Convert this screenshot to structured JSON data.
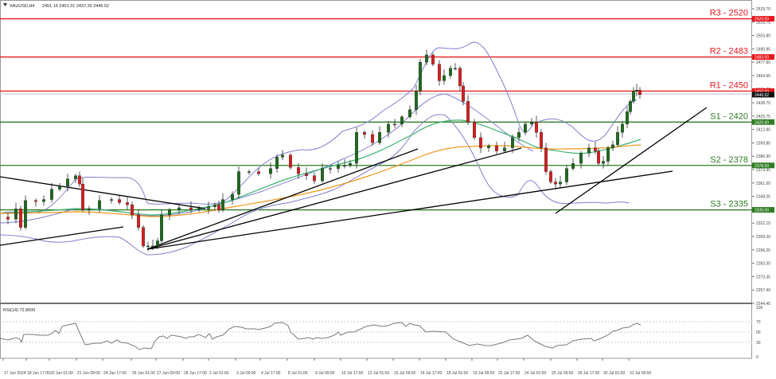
{
  "header": {
    "symbol_timeframe": "XAUUSD,H4",
    "ohlc": "2451.16 2451.31 2437.25 2446.52"
  },
  "rsi_label": "RSI(14) 72.8000",
  "levels": [
    {
      "name": "R3",
      "label": "R3 - 2520",
      "price": 2520.0,
      "tag": "2520.00",
      "color": "#e8171c"
    },
    {
      "name": "R2",
      "label": "R2 - 2483",
      "price": 2483.0,
      "tag": "2483.00",
      "color": "#e8171c"
    },
    {
      "name": "R1",
      "label": "R1 - 2450",
      "price": 2450.0,
      "tag": "2450.00",
      "color": "#e8171c"
    },
    {
      "name": "S1",
      "label": "S1 - 2420",
      "price": 2420.0,
      "tag": "2420.00",
      "color": "#2e7d23"
    },
    {
      "name": "S2",
      "label": "S2 - 2378",
      "price": 2378.0,
      "tag": "2378.00",
      "color": "#2e7d23"
    },
    {
      "name": "S3",
      "label": "S3 - 2335",
      "price": 2335.0,
      "tag": "2335.00",
      "color": "#2e7d23"
    }
  ],
  "current_price_tag": "2446.52",
  "colors": {
    "bull": "#1e6b1e",
    "bear": "#d61f1f",
    "bollinger": "#7f7fd0",
    "ma_fast": "#3cb371",
    "ma_slow": "#f5961e",
    "trendline": "#000000",
    "rsi": "#7a7a7a"
  },
  "chart_data": {
    "type": "candlestick",
    "title": "XAUUSD,H4",
    "price_axis": {
      "ticks": [
        "2529.70",
        "2516.75",
        "2503.80",
        "2490.85",
        "2477.90",
        "2464.95",
        "2451.80",
        "2438.70",
        "2425.75",
        "2412.80",
        "2399.85",
        "2386.90",
        "2373.95",
        "2361.00",
        "2348.05",
        "2335.10",
        "2322.15",
        "2309.20",
        "2296.25",
        "2283.30",
        "2270.35",
        "2257.40",
        "2244.45"
      ],
      "range": [
        2244.45,
        2529.7
      ]
    },
    "time_axis": {
      "ticks": [
        "17 Jun 2024",
        "18 Jun 17:00",
        "20 Jun 01:00",
        "21 Jun 09:00",
        "24 Jun 17:00",
        "26 Jun 01:00",
        "27 Jun 09:00",
        "28 Jun 17:00",
        "2 Jul 01:00",
        "3 Jul 09:00",
        "4 Jul 17:00",
        "8 Jul 01:00",
        "9 Jul 09:00",
        "10 Jul 17:00",
        "12 Jul 01:00",
        "15 Jul 09:00",
        "16 Jul 17:00",
        "18 Jul 01:00",
        "19 Jul 09:00",
        "22 Jul 17:00",
        "24 Jul 01:00",
        "25 Jul 09:00",
        "26 Jul 17:00",
        "30 Jul 01:00",
        "31 Jul 09:00"
      ]
    },
    "horizontal_levels": {
      "R3": 2520,
      "R2": 2483,
      "R1": 2450,
      "S1": 2420,
      "S2": 2378,
      "S3": 2335
    },
    "last_ohlc": {
      "open": 2451.16,
      "high": 2451.31,
      "low": 2437.25,
      "close": 2446.52
    },
    "price_path_approx": [
      {
        "x": "17 Jun 2024",
        "close": 2328
      },
      {
        "x": "20 Jun 01:00",
        "close": 2360
      },
      {
        "x": "21 Jun 09:00",
        "close": 2322
      },
      {
        "x": "24 Jun 17:00",
        "close": 2330
      },
      {
        "x": "26 Jun 01:00",
        "close": 2300
      },
      {
        "x": "27 Jun 09:00",
        "close": 2328
      },
      {
        "x": "28 Jun 17:00",
        "close": 2327
      },
      {
        "x": "2 Jul 01:00",
        "close": 2330
      },
      {
        "x": "3 Jul 09:00",
        "close": 2360
      },
      {
        "x": "4 Jul 17:00",
        "close": 2392
      },
      {
        "x": "8 Jul 01:00",
        "close": 2370
      },
      {
        "x": "9 Jul 09:00",
        "close": 2362
      },
      {
        "x": "10 Jul 17:00",
        "close": 2390
      },
      {
        "x": "12 Jul 01:00",
        "close": 2410
      },
      {
        "x": "15 Jul 09:00",
        "close": 2430
      },
      {
        "x": "16 Jul 17:00",
        "close": 2478
      },
      {
        "x": "18 Jul 01:00",
        "close": 2455
      },
      {
        "x": "19 Jul 09:00",
        "close": 2400
      },
      {
        "x": "22 Jul 17:00",
        "close": 2397
      },
      {
        "x": "24 Jul 01:00",
        "close": 2415
      },
      {
        "x": "25 Jul 09:00",
        "close": 2365
      },
      {
        "x": "26 Jul 17:00",
        "close": 2385
      },
      {
        "x": "30 Jul 01:00",
        "close": 2387
      },
      {
        "x": "31 Jul 09:00",
        "close": 2446.52
      }
    ],
    "rsi": {
      "label": "RSI(14) 72.8000",
      "levels": [
        30,
        50,
        70
      ],
      "axis_ticks": [
        "100",
        "70",
        "50",
        "30",
        "0"
      ],
      "last": 72.8
    },
    "indicators": [
      "Bollinger Bands",
      "Moving Average (fast, green)",
      "Moving Average (slow, orange)",
      "RSI(14)"
    ]
  }
}
